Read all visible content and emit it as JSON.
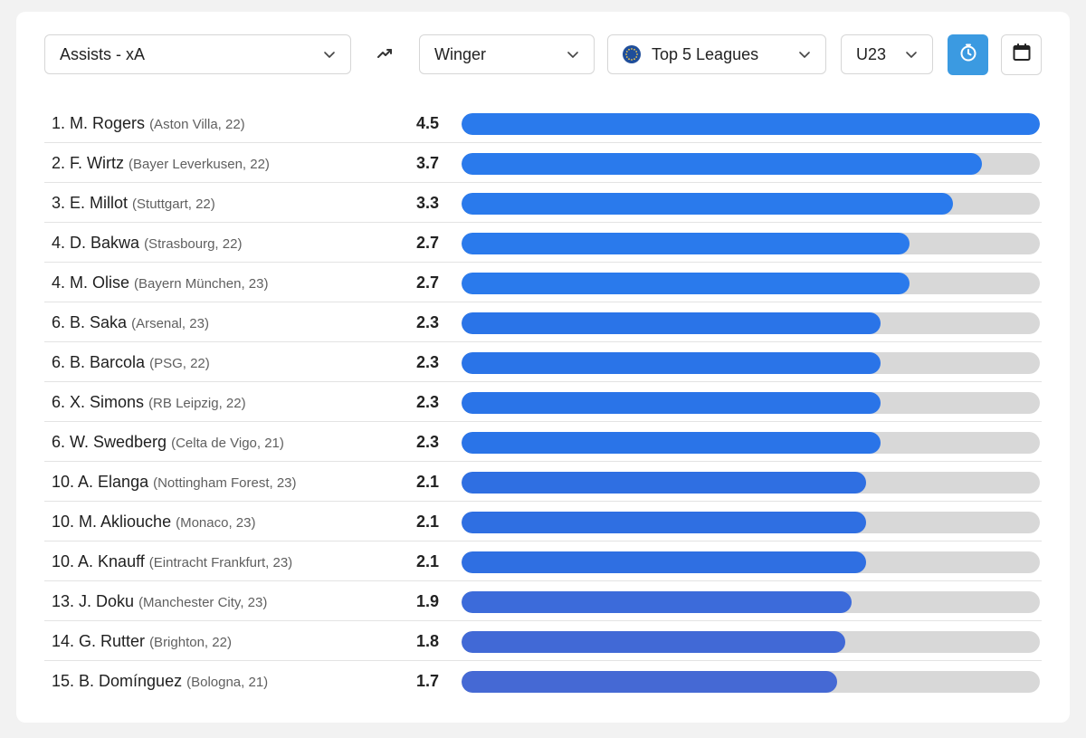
{
  "filters": {
    "metric": "Assists - xA",
    "position": "Winger",
    "competition": "Top 5 Leagues",
    "age_group": "U23"
  },
  "icons": {
    "trend": "trending-up-icon",
    "timer": "stopwatch-icon",
    "calendar": "calendar-icon",
    "globe": "europe-flag-icon"
  },
  "colors": {
    "accent": "#3b9ae1",
    "bar_primary": "#2a7aec",
    "bar_secondary": "#4569d4",
    "track": "#d8d8d8"
  },
  "max_value": 4.5,
  "rows": [
    {
      "rank_name": "1. M. Rogers",
      "meta": "(Aston Villa, 22)",
      "value": "4.5",
      "fraction": 1.0,
      "color": "#2a7aec"
    },
    {
      "rank_name": "2. F. Wirtz",
      "meta": "(Bayer Leverkusen, 22)",
      "value": "3.7",
      "fraction": 0.9,
      "color": "#2a7aec"
    },
    {
      "rank_name": "3. E. Millot",
      "meta": "(Stuttgart, 22)",
      "value": "3.3",
      "fraction": 0.85,
      "color": "#2a7aec"
    },
    {
      "rank_name": "4. D. Bakwa",
      "meta": "(Strasbourg, 22)",
      "value": "2.7",
      "fraction": 0.775,
      "color": "#2a7aec"
    },
    {
      "rank_name": "4. M. Olise",
      "meta": "(Bayern München, 23)",
      "value": "2.7",
      "fraction": 0.775,
      "color": "#2a7aec"
    },
    {
      "rank_name": "6. B. Saka",
      "meta": "(Arsenal, 23)",
      "value": "2.3",
      "fraction": 0.725,
      "color": "#2a74e8"
    },
    {
      "rank_name": "6. B. Barcola",
      "meta": "(PSG, 22)",
      "value": "2.3",
      "fraction": 0.725,
      "color": "#2a74e8"
    },
    {
      "rank_name": "6. X. Simons",
      "meta": "(RB Leipzig, 22)",
      "value": "2.3",
      "fraction": 0.725,
      "color": "#2a74e8"
    },
    {
      "rank_name": "6. W. Swedberg",
      "meta": "(Celta de Vigo, 21)",
      "value": "2.3",
      "fraction": 0.725,
      "color": "#2a74e8"
    },
    {
      "rank_name": "10. A. Elanga",
      "meta": "(Nottingham Forest, 23)",
      "value": "2.1",
      "fraction": 0.7,
      "color": "#2f6fe2"
    },
    {
      "rank_name": "10. M. Akliouche",
      "meta": "(Monaco, 23)",
      "value": "2.1",
      "fraction": 0.7,
      "color": "#2f6fe2"
    },
    {
      "rank_name": "10. A. Knauff",
      "meta": "(Eintracht Frankfurt, 23)",
      "value": "2.1",
      "fraction": 0.7,
      "color": "#2f6fe2"
    },
    {
      "rank_name": "13. J. Doku",
      "meta": "(Manchester City, 23)",
      "value": "1.9",
      "fraction": 0.675,
      "color": "#3c6bda"
    },
    {
      "rank_name": "14. G. Rutter",
      "meta": "(Brighton, 22)",
      "value": "1.8",
      "fraction": 0.663,
      "color": "#4169d6"
    },
    {
      "rank_name": "15. B. Domínguez",
      "meta": "(Bologna, 21)",
      "value": "1.7",
      "fraction": 0.65,
      "color": "#4569d4"
    }
  ]
}
